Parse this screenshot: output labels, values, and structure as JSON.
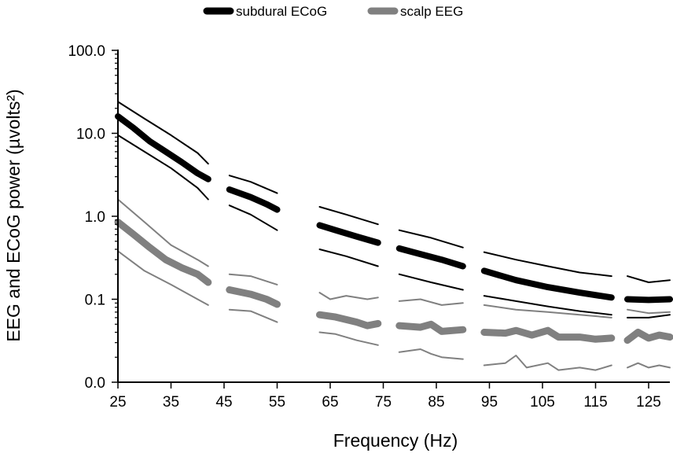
{
  "chart_data": {
    "type": "line",
    "title": "",
    "xlabel": "Frequency (Hz)",
    "ylabel": "EEG and ECoG power (µvolts²)",
    "x_ticks": [
      25,
      35,
      45,
      55,
      65,
      75,
      85,
      95,
      105,
      115,
      125
    ],
    "y_ticks": [
      {
        "value": 0.01,
        "label": "0.0"
      },
      {
        "value": 0.1,
        "label": "0.1"
      },
      {
        "value": 1,
        "label": "1.0"
      },
      {
        "value": 10,
        "label": "10.0"
      },
      {
        "value": 100,
        "label": "100.0"
      }
    ],
    "xlim": [
      25,
      129
    ],
    "ylim": [
      0.01,
      100
    ],
    "y_scale": "log",
    "grid": false,
    "legend_position": "top-center",
    "legend": [
      {
        "name": "subdural ECoG",
        "color": "#000000"
      },
      {
        "name": "scalp EEG",
        "color": "#808080"
      }
    ],
    "segments": [
      [
        25,
        42
      ],
      [
        46,
        55
      ],
      [
        63,
        74
      ],
      [
        78,
        90
      ],
      [
        94,
        118
      ],
      [
        121,
        129
      ]
    ],
    "series": [
      {
        "name": "subdural ECoG",
        "role": "mean",
        "color": "#000000",
        "points": [
          [
            25,
            16
          ],
          [
            28,
            11.5
          ],
          [
            31,
            8
          ],
          [
            34,
            6
          ],
          [
            37,
            4.5
          ],
          [
            40,
            3.3
          ],
          [
            42,
            2.8
          ],
          [
            46,
            2.1
          ],
          [
            50,
            1.7
          ],
          [
            53,
            1.4
          ],
          [
            55,
            1.2
          ],
          [
            63,
            0.78
          ],
          [
            66,
            0.68
          ],
          [
            70,
            0.57
          ],
          [
            74,
            0.48
          ],
          [
            78,
            0.41
          ],
          [
            82,
            0.35
          ],
          [
            86,
            0.3
          ],
          [
            90,
            0.25
          ],
          [
            94,
            0.22
          ],
          [
            100,
            0.17
          ],
          [
            106,
            0.14
          ],
          [
            112,
            0.12
          ],
          [
            118,
            0.105
          ],
          [
            121,
            0.1
          ],
          [
            125,
            0.098
          ],
          [
            129,
            0.1
          ]
        ]
      },
      {
        "name": "subdural ECoG",
        "role": "upper bound",
        "color": "#000000",
        "points": [
          [
            25,
            24
          ],
          [
            30,
            15
          ],
          [
            35,
            9.5
          ],
          [
            40,
            5.8
          ],
          [
            42,
            4.3
          ],
          [
            46,
            3.1
          ],
          [
            50,
            2.6
          ],
          [
            55,
            1.9
          ],
          [
            63,
            1.3
          ],
          [
            68,
            1.05
          ],
          [
            74,
            0.8
          ],
          [
            78,
            0.68
          ],
          [
            84,
            0.55
          ],
          [
            90,
            0.42
          ],
          [
            94,
            0.37
          ],
          [
            100,
            0.3
          ],
          [
            106,
            0.25
          ],
          [
            112,
            0.21
          ],
          [
            118,
            0.19
          ],
          [
            121,
            0.19
          ],
          [
            125,
            0.16
          ],
          [
            129,
            0.17
          ]
        ]
      },
      {
        "name": "subdural ECoG",
        "role": "lower bound",
        "color": "#000000",
        "points": [
          [
            25,
            9.5
          ],
          [
            30,
            6
          ],
          [
            35,
            3.8
          ],
          [
            40,
            2.2
          ],
          [
            42,
            1.6
          ],
          [
            46,
            1.35
          ],
          [
            50,
            1.05
          ],
          [
            55,
            0.68
          ],
          [
            63,
            0.4
          ],
          [
            68,
            0.33
          ],
          [
            74,
            0.25
          ],
          [
            78,
            0.2
          ],
          [
            84,
            0.16
          ],
          [
            90,
            0.13
          ],
          [
            94,
            0.11
          ],
          [
            100,
            0.095
          ],
          [
            106,
            0.082
          ],
          [
            112,
            0.072
          ],
          [
            118,
            0.065
          ],
          [
            121,
            0.06
          ],
          [
            125,
            0.06
          ],
          [
            129,
            0.065
          ]
        ]
      },
      {
        "name": "scalp EEG",
        "role": "mean",
        "color": "#808080",
        "points": [
          [
            25,
            0.85
          ],
          [
            28,
            0.6
          ],
          [
            31,
            0.42
          ],
          [
            34,
            0.3
          ],
          [
            37,
            0.24
          ],
          [
            40,
            0.2
          ],
          [
            42,
            0.16
          ],
          [
            46,
            0.13
          ],
          [
            50,
            0.115
          ],
          [
            53,
            0.1
          ],
          [
            55,
            0.087
          ],
          [
            63,
            0.065
          ],
          [
            66,
            0.061
          ],
          [
            70,
            0.053
          ],
          [
            72,
            0.048
          ],
          [
            74,
            0.051
          ],
          [
            78,
            0.048
          ],
          [
            82,
            0.046
          ],
          [
            84,
            0.05
          ],
          [
            86,
            0.041
          ],
          [
            90,
            0.043
          ],
          [
            94,
            0.04
          ],
          [
            98,
            0.039
          ],
          [
            100,
            0.042
          ],
          [
            103,
            0.037
          ],
          [
            106,
            0.042
          ],
          [
            108,
            0.035
          ],
          [
            112,
            0.035
          ],
          [
            115,
            0.033
          ],
          [
            118,
            0.034
          ],
          [
            121,
            0.032
          ],
          [
            123,
            0.04
          ],
          [
            125,
            0.034
          ],
          [
            127,
            0.037
          ],
          [
            129,
            0.035
          ]
        ]
      },
      {
        "name": "scalp EEG",
        "role": "upper bound",
        "color": "#808080",
        "points": [
          [
            25,
            1.6
          ],
          [
            30,
            0.85
          ],
          [
            35,
            0.45
          ],
          [
            40,
            0.3
          ],
          [
            42,
            0.25
          ],
          [
            46,
            0.2
          ],
          [
            50,
            0.19
          ],
          [
            55,
            0.15
          ],
          [
            63,
            0.12
          ],
          [
            65,
            0.1
          ],
          [
            68,
            0.11
          ],
          [
            72,
            0.1
          ],
          [
            74,
            0.105
          ],
          [
            78,
            0.095
          ],
          [
            82,
            0.1
          ],
          [
            86,
            0.085
          ],
          [
            90,
            0.09
          ],
          [
            94,
            0.085
          ],
          [
            100,
            0.075
          ],
          [
            106,
            0.07
          ],
          [
            112,
            0.065
          ],
          [
            118,
            0.06
          ],
          [
            121,
            0.075
          ],
          [
            125,
            0.068
          ],
          [
            129,
            0.07
          ]
        ]
      },
      {
        "name": "scalp EEG",
        "role": "lower bound",
        "color": "#808080",
        "points": [
          [
            25,
            0.38
          ],
          [
            30,
            0.22
          ],
          [
            35,
            0.15
          ],
          [
            40,
            0.1
          ],
          [
            42,
            0.085
          ],
          [
            46,
            0.075
          ],
          [
            50,
            0.072
          ],
          [
            53,
            0.06
          ],
          [
            55,
            0.053
          ],
          [
            63,
            0.04
          ],
          [
            66,
            0.038
          ],
          [
            70,
            0.032
          ],
          [
            74,
            0.028
          ],
          [
            78,
            0.023
          ],
          [
            82,
            0.025
          ],
          [
            84,
            0.022
          ],
          [
            86,
            0.02
          ],
          [
            90,
            0.019
          ],
          [
            94,
            0.016
          ],
          [
            98,
            0.017
          ],
          [
            100,
            0.021
          ],
          [
            102,
            0.015
          ],
          [
            106,
            0.017
          ],
          [
            108,
            0.014
          ],
          [
            112,
            0.015
          ],
          [
            115,
            0.014
          ],
          [
            118,
            0.016
          ],
          [
            121,
            0.015
          ],
          [
            123,
            0.017
          ],
          [
            125,
            0.015
          ],
          [
            127,
            0.016
          ],
          [
            129,
            0.015
          ]
        ]
      }
    ]
  }
}
